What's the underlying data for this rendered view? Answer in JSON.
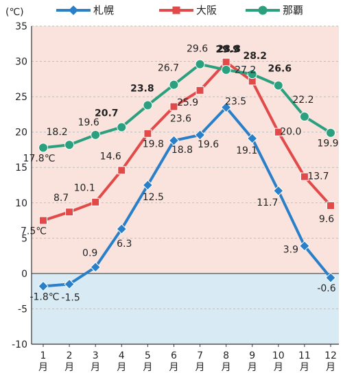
{
  "chart_data": {
    "type": "line",
    "unit_label": "(℃)",
    "categories": [
      "1",
      "2",
      "3",
      "4",
      "5",
      "6",
      "7",
      "8",
      "9",
      "10",
      "11",
      "12"
    ],
    "month_suffix": "月",
    "ylim": [
      -10,
      35
    ],
    "yticks": [
      35,
      30,
      25,
      20,
      15,
      10,
      5,
      0,
      -5,
      -10
    ],
    "ytick_labels": [
      "35",
      "30",
      "25",
      "20",
      "15",
      "10",
      "5",
      "0",
      "-5",
      "-10"
    ],
    "background": {
      "above_zero": "#fbe3dd",
      "below_zero": "#d8ebf4"
    },
    "series": [
      {
        "name": "札幌",
        "color": "#2a7fc9",
        "marker": "diamond",
        "values": [
          -1.8,
          -1.5,
          0.9,
          6.3,
          12.5,
          18.8,
          19.6,
          23.5,
          19.1,
          11.7,
          3.9,
          -0.6
        ],
        "labels": [
          "-1.8℃",
          "-1.5",
          "0.9",
          "6.3",
          "12.5",
          "18.8",
          "19.6",
          "23.5",
          "19.1",
          "11.7",
          "3.9",
          "-0.6"
        ],
        "bold": [
          false,
          false,
          false,
          false,
          false,
          false,
          false,
          false,
          false,
          false,
          false,
          false
        ]
      },
      {
        "name": "大阪",
        "color": "#e24a4a",
        "marker": "square",
        "values": [
          7.5,
          8.7,
          10.1,
          14.6,
          19.8,
          23.6,
          25.9,
          29.9,
          27.2,
          20.0,
          13.7,
          9.6
        ],
        "labels": [
          "7.5℃",
          "8.7",
          "10.1",
          "14.6",
          "19.8",
          "23.6",
          "25.9",
          "29.9",
          "27.2",
          "20.0",
          "13.7",
          "9.6"
        ],
        "bold": [
          false,
          false,
          false,
          false,
          false,
          false,
          false,
          true,
          false,
          false,
          false,
          false
        ]
      },
      {
        "name": "那覇",
        "color": "#2ca07e",
        "marker": "circle",
        "values": [
          17.8,
          18.2,
          19.6,
          20.7,
          23.8,
          26.7,
          29.6,
          28.8,
          28.2,
          26.6,
          22.2,
          19.9
        ],
        "labels": [
          "17.8℃",
          "18.2",
          "19.6",
          "20.7",
          "23.8",
          "26.7",
          "29.6",
          "28.8",
          "28.2",
          "26.6",
          "22.2",
          "19.9"
        ],
        "bold": [
          false,
          false,
          false,
          true,
          true,
          false,
          false,
          true,
          true,
          true,
          false,
          false
        ]
      }
    ]
  }
}
